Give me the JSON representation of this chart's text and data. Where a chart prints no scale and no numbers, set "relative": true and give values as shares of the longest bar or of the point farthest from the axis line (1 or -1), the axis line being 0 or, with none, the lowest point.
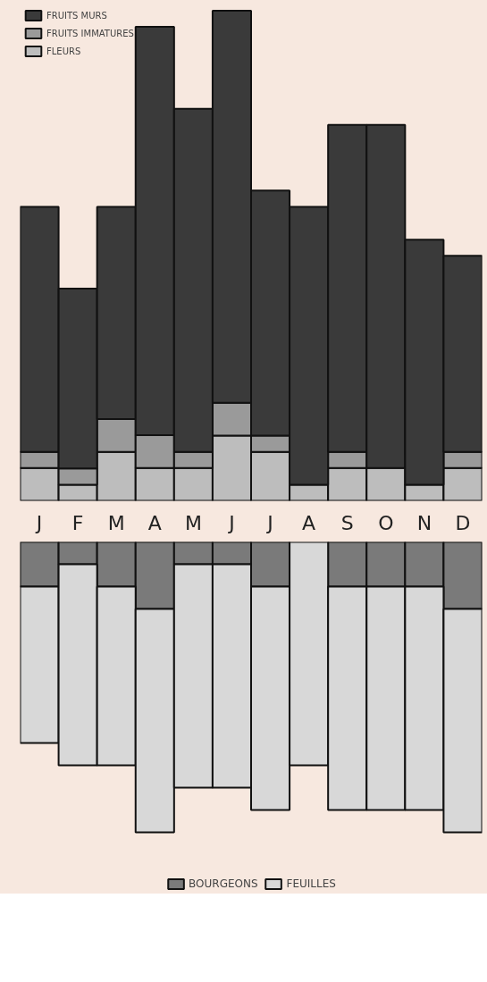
{
  "chart_data": [
    {
      "type": "bar",
      "stacked": true,
      "relative": true,
      "categories": [
        "J",
        "F",
        "M",
        "A",
        "M",
        "J",
        "J",
        "A",
        "S",
        "O",
        "N",
        "D"
      ],
      "legend": "top left",
      "grid": false,
      "series": [
        {
          "name": "FLEURS",
          "color": "#bdbdbd",
          "values": [
            0.067,
            0.033,
            0.1,
            0.067,
            0.067,
            0.133,
            0.1,
            0.033,
            0.067,
            0.067,
            0.033,
            0.067
          ]
        },
        {
          "name": "FRUITS IMMATURES",
          "color": "#9a9a9a",
          "values": [
            0.033,
            0.033,
            0.067,
            0.067,
            0.033,
            0.067,
            0.033,
            0,
            0.033,
            0,
            0,
            0.033
          ]
        },
        {
          "name": "FRUITS MURS",
          "color": "#3a3a3a",
          "values": [
            0.5,
            0.367,
            0.433,
            0.833,
            0.7,
            0.8,
            0.5,
            0.567,
            0.667,
            0.7,
            0.5,
            0.4
          ]
        }
      ]
    },
    {
      "type": "bar",
      "stacked": true,
      "relative": true,
      "categories": [
        null,
        null,
        null,
        null,
        null,
        null,
        null,
        null,
        null,
        null,
        null,
        null
      ],
      "tick_labels": false,
      "legend": "bottom",
      "grid": false,
      "series": [
        {
          "name": "BOURGEONS",
          "color": "#7a7a7a",
          "values": [
            -0.154,
            -0.077,
            -0.154,
            -0.231,
            -0.077,
            -0.077,
            -0.154,
            null,
            -0.154,
            -0.154,
            -0.154,
            -0.231
          ]
        },
        {
          "name": "FEUILLES",
          "color": "#d8d8d8",
          "values": [
            -0.538,
            -0.692,
            -0.615,
            -0.769,
            -0.769,
            -0.769,
            -0.769,
            -0.769,
            -0.769,
            -0.769,
            -0.769,
            -0.769
          ]
        }
      ]
    }
  ]
}
